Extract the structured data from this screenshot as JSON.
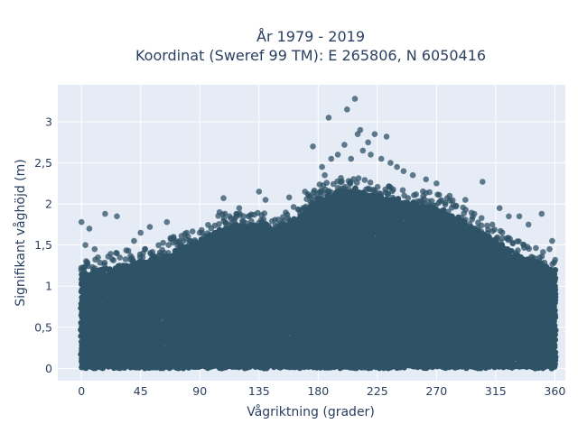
{
  "chart_data": {
    "type": "scatter",
    "title_line1": "År 1979 - 2019",
    "title_line2": "Koordinat (Sweref 99 TM): E 265806, N 6050416",
    "xlabel": "Vågriktning (grader)",
    "ylabel": "Signifikant våghöjd (m)",
    "xlim": [
      -18,
      368
    ],
    "ylim": [
      -0.15,
      3.45
    ],
    "x_ticks": [
      0,
      45,
      90,
      135,
      180,
      225,
      270,
      315,
      360
    ],
    "x_tick_labels": [
      "0",
      "45",
      "90",
      "135",
      "180",
      "225",
      "270",
      "315",
      "360"
    ],
    "y_ticks": [
      0,
      0.5,
      1,
      1.5,
      2,
      2.5,
      3
    ],
    "y_tick_labels": [
      "0",
      "0,5",
      "1",
      "1,5",
      "2",
      "2,5",
      "3"
    ],
    "grid": true,
    "colors": {
      "plot_bg": "#e5ecf6",
      "grid": "#ffffff",
      "marker": "#2e5266",
      "text": "#2a3f5f"
    },
    "dense_region_upper_envelope": [
      [
        0,
        1.15
      ],
      [
        15,
        1.2
      ],
      [
        30,
        1.25
      ],
      [
        45,
        1.3
      ],
      [
        60,
        1.35
      ],
      [
        75,
        1.45
      ],
      [
        90,
        1.55
      ],
      [
        105,
        1.7
      ],
      [
        120,
        1.75
      ],
      [
        135,
        1.75
      ],
      [
        150,
        1.7
      ],
      [
        165,
        1.85
      ],
      [
        180,
        2.05
      ],
      [
        195,
        2.15
      ],
      [
        210,
        2.15
      ],
      [
        225,
        2.1
      ],
      [
        240,
        2.05
      ],
      [
        255,
        2.0
      ],
      [
        270,
        1.95
      ],
      [
        285,
        1.85
      ],
      [
        300,
        1.7
      ],
      [
        315,
        1.55
      ],
      [
        330,
        1.4
      ],
      [
        345,
        1.3
      ],
      [
        360,
        1.2
      ]
    ],
    "dense_region_lower_bound": 0.02,
    "outlier_points": [
      [
        0,
        1.78
      ],
      [
        3,
        1.5
      ],
      [
        6,
        1.7
      ],
      [
        10,
        1.45
      ],
      [
        18,
        1.88
      ],
      [
        27,
        1.85
      ],
      [
        40,
        1.55
      ],
      [
        45,
        1.65
      ],
      [
        52,
        1.72
      ],
      [
        65,
        1.78
      ],
      [
        70,
        1.6
      ],
      [
        80,
        1.65
      ],
      [
        90,
        1.65
      ],
      [
        105,
        1.9
      ],
      [
        108,
        2.07
      ],
      [
        120,
        1.95
      ],
      [
        135,
        2.15
      ],
      [
        140,
        2.05
      ],
      [
        158,
        2.08
      ],
      [
        170,
        2.15
      ],
      [
        176,
        2.7
      ],
      [
        183,
        2.45
      ],
      [
        185,
        2.35
      ],
      [
        188,
        3.05
      ],
      [
        190,
        2.55
      ],
      [
        195,
        2.6
      ],
      [
        200,
        2.72
      ],
      [
        202,
        3.15
      ],
      [
        205,
        2.55
      ],
      [
        208,
        3.28
      ],
      [
        210,
        2.85
      ],
      [
        212,
        2.9
      ],
      [
        214,
        2.65
      ],
      [
        218,
        2.75
      ],
      [
        220,
        2.6
      ],
      [
        223,
        2.85
      ],
      [
        228,
        2.55
      ],
      [
        232,
        2.82
      ],
      [
        235,
        2.5
      ],
      [
        240,
        2.45
      ],
      [
        245,
        2.4
      ],
      [
        252,
        2.35
      ],
      [
        262,
        2.3
      ],
      [
        270,
        2.25
      ],
      [
        280,
        2.1
      ],
      [
        292,
        2.05
      ],
      [
        305,
        2.27
      ],
      [
        318,
        1.95
      ],
      [
        325,
        1.85
      ],
      [
        333,
        1.85
      ],
      [
        340,
        1.75
      ],
      [
        350,
        1.88
      ],
      [
        356,
        1.45
      ],
      [
        358,
        1.55
      ]
    ]
  }
}
